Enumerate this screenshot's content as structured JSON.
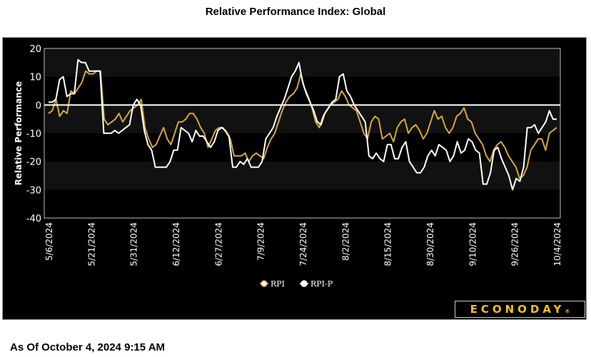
{
  "page": {
    "title": "Relative Performance Index: Global",
    "as_of": "As Of October 4, 2024 9:15 AM",
    "logo_text": "ECONODAY",
    "logo_mark": "®"
  },
  "colors": {
    "rpi": "#d4a83a",
    "rpi_p": "#ffffff",
    "band_light": "#111111",
    "band_dark": "#000000"
  },
  "chart_data": {
    "type": "line",
    "title": "Relative Performance Index: Global",
    "xlabel": "",
    "ylabel": "Relative Performance",
    "ylim": [
      -40,
      20
    ],
    "yticks": [
      20,
      10,
      0,
      -10,
      -20,
      -30,
      -40
    ],
    "x_tick_labels": [
      "5/6/2024",
      "5/21/2024",
      "5/31/2024",
      "6/12/2024",
      "6/27/2024",
      "7/9/2024",
      "7/24/2024",
      "8/2/2024",
      "8/15/2024",
      "8/30/2024",
      "9/10/2024",
      "9/26/2024",
      "10/4/2024"
    ],
    "legend": [
      "RPI",
      "RPI-P"
    ],
    "legend_position": "bottom",
    "series": [
      {
        "name": "RPI",
        "values": [
          -3,
          -2,
          2,
          -4,
          -2,
          -3,
          5,
          4,
          6,
          8,
          12,
          11,
          11,
          12,
          12,
          -5,
          -7,
          -6,
          -5,
          -3,
          -6,
          -4,
          -2,
          -1,
          0,
          2,
          -8,
          -12,
          -15,
          -14,
          -11,
          -8,
          -12,
          -14,
          -10,
          -6,
          -6,
          -5,
          -3,
          -3,
          -5,
          -8,
          -10,
          -15,
          -12,
          -9,
          -8,
          -8,
          -10,
          -12,
          -18,
          -18,
          -18,
          -17,
          -20,
          -18,
          -17,
          -18,
          -19,
          -15,
          -12,
          -10,
          -6,
          -2,
          1,
          3,
          4,
          6,
          11,
          6,
          3,
          -1,
          -6,
          -8,
          -4,
          -2,
          0,
          1,
          2,
          5,
          3,
          0,
          -1,
          -2,
          -6,
          -10,
          -12,
          -6,
          -4,
          -5,
          -12,
          -11,
          -10,
          -13,
          -8,
          -6,
          -5,
          -10,
          -8,
          -7,
          -9,
          -12,
          -10,
          -6,
          -2,
          -5,
          -4,
          -8,
          -10,
          -8,
          -4,
          -3,
          -1,
          -5,
          -6,
          -10,
          -12,
          -14,
          -18,
          -20,
          -16,
          -14,
          -13,
          -15,
          -18,
          -20,
          -22,
          -26,
          -25,
          -22,
          -16,
          -14,
          -12,
          -12,
          -16,
          -10,
          -9,
          -8
        ]
      },
      {
        "name": "RPI-P",
        "values": [
          1,
          1,
          2,
          9,
          10,
          3,
          4,
          4,
          16,
          15,
          15,
          12,
          12,
          12,
          12,
          -10,
          -10,
          -10,
          -9,
          -10,
          -9,
          -8,
          -7,
          0,
          2,
          0,
          -9,
          -14,
          -16,
          -22,
          -22,
          -22,
          -22,
          -20,
          -16,
          -16,
          -8,
          -9,
          -10,
          -13,
          -9,
          -11,
          -11,
          -13,
          -15,
          -13,
          -9,
          -8,
          -9,
          -11,
          -22,
          -22,
          -20,
          -21,
          -19,
          -22,
          -22,
          -22,
          -20,
          -12,
          -10,
          -8,
          -4,
          -1,
          2,
          6,
          10,
          12,
          15,
          8,
          4,
          1,
          -2,
          -6,
          -7,
          -3,
          -1,
          1,
          2,
          10,
          11,
          5,
          3,
          0,
          -2,
          -4,
          -6,
          -18,
          -19,
          -17,
          -19,
          -20,
          -14,
          -14,
          -19,
          -19,
          -15,
          -13,
          -20,
          -22,
          -24,
          -24,
          -22,
          -18,
          -16,
          -18,
          -14,
          -15,
          -16,
          -20,
          -18,
          -13,
          -17,
          -16,
          -12,
          -13,
          -16,
          -17,
          -28,
          -28,
          -24,
          -16,
          -15,
          -19,
          -22,
          -25,
          -30,
          -26,
          -27,
          -22,
          -8,
          -8,
          -7,
          -10,
          -8,
          -6,
          -2,
          -5,
          -5
        ]
      }
    ]
  }
}
